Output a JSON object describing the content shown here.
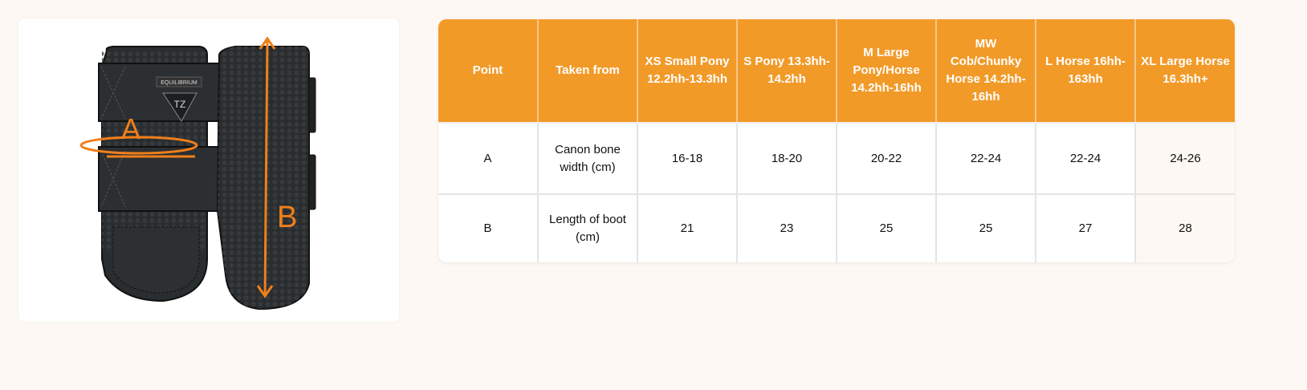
{
  "image": {
    "brand_logo_text": "EQUILIBRIUM",
    "logo_monogram": "TZ",
    "label_a": "A",
    "label_b": "B",
    "accent_color": "#f07f1b"
  },
  "table": {
    "header_color": "#f29a28",
    "headers": [
      "Point",
      "Taken from",
      "XS Small Pony 12.2hh-13.3hh",
      "S Pony 13.3hh-14.2hh",
      "M Large Pony/Horse 14.2hh-16hh",
      "MW Cob/Chunky Horse 14.2hh-16hh",
      "L Horse 16hh-163hh",
      "XL Large Horse 16.3hh+"
    ],
    "rows": [
      [
        "A",
        "Canon bone width (cm)",
        "16-18",
        "18-20",
        "20-22",
        "22-24",
        "22-24",
        "24-26"
      ],
      [
        "B",
        "Length of boot (cm)",
        "21",
        "23",
        "25",
        "25",
        "27",
        "28"
      ]
    ]
  }
}
